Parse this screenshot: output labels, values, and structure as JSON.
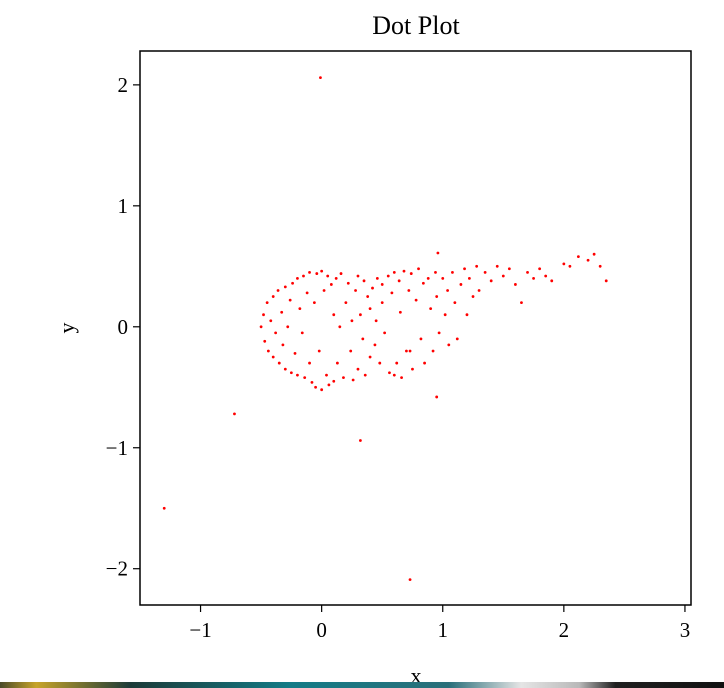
{
  "chart_data": {
    "type": "scatter",
    "title": "Dot Plot",
    "xlabel": "x",
    "ylabel": "y",
    "xlim": [
      -1.5,
      3.05
    ],
    "ylim": [
      -2.3,
      2.28
    ],
    "xticks": [
      -1,
      0,
      1,
      2,
      3
    ],
    "yticks": [
      -2,
      -1,
      0,
      1,
      2
    ],
    "xtick_labels": [
      "−1",
      "0",
      "1",
      "2",
      "3"
    ],
    "ytick_labels": [
      "−2",
      "−1",
      "0",
      "1",
      "2"
    ],
    "grid": false,
    "legend": "none",
    "color": "#ff0000",
    "series": [
      {
        "values": [
          [
            -0.5,
            0.0
          ],
          [
            -0.48,
            0.1
          ],
          [
            -0.47,
            -0.12
          ],
          [
            -0.45,
            0.2
          ],
          [
            -0.44,
            -0.2
          ],
          [
            -0.42,
            0.05
          ],
          [
            -0.4,
            0.25
          ],
          [
            -0.4,
            -0.25
          ],
          [
            -0.38,
            -0.05
          ],
          [
            -0.36,
            0.3
          ],
          [
            -0.35,
            -0.3
          ],
          [
            -0.33,
            0.12
          ],
          [
            -0.32,
            -0.15
          ],
          [
            -0.3,
            0.33
          ],
          [
            -0.3,
            -0.35
          ],
          [
            -0.28,
            0.0
          ],
          [
            -0.26,
            0.22
          ],
          [
            -0.25,
            -0.38
          ],
          [
            -0.24,
            0.36
          ],
          [
            -0.22,
            -0.22
          ],
          [
            -0.2,
            0.4
          ],
          [
            -0.2,
            -0.4
          ],
          [
            -0.18,
            0.15
          ],
          [
            -0.16,
            -0.05
          ],
          [
            -0.15,
            0.42
          ],
          [
            -0.14,
            -0.42
          ],
          [
            -0.12,
            0.28
          ],
          [
            -0.1,
            -0.3
          ],
          [
            -0.1,
            0.45
          ],
          [
            -0.08,
            -0.46
          ],
          [
            -0.06,
            0.2
          ],
          [
            -0.05,
            -0.5
          ],
          [
            -0.04,
            0.44
          ],
          [
            -0.02,
            -0.2
          ],
          [
            0.0,
            0.46
          ],
          [
            0.0,
            -0.52
          ],
          [
            0.02,
            0.3
          ],
          [
            0.04,
            -0.4
          ],
          [
            0.05,
            0.42
          ],
          [
            0.06,
            -0.48
          ],
          [
            0.08,
            0.35
          ],
          [
            0.1,
            -0.45
          ],
          [
            0.1,
            0.1
          ],
          [
            0.12,
            0.4
          ],
          [
            0.13,
            -0.3
          ],
          [
            0.15,
            0.0
          ],
          [
            0.16,
            0.44
          ],
          [
            0.18,
            -0.42
          ],
          [
            0.2,
            0.2
          ],
          [
            0.22,
            0.36
          ],
          [
            0.24,
            -0.2
          ],
          [
            0.25,
            0.05
          ],
          [
            0.26,
            -0.44
          ],
          [
            0.28,
            0.3
          ],
          [
            0.3,
            -0.35
          ],
          [
            0.3,
            0.42
          ],
          [
            0.32,
            0.1
          ],
          [
            0.34,
            -0.1
          ],
          [
            0.35,
            0.38
          ],
          [
            0.36,
            -0.4
          ],
          [
            0.38,
            0.25
          ],
          [
            0.4,
            -0.25
          ],
          [
            0.4,
            0.15
          ],
          [
            0.42,
            0.32
          ],
          [
            0.44,
            -0.15
          ],
          [
            0.45,
            0.05
          ],
          [
            0.46,
            0.4
          ],
          [
            0.48,
            -0.3
          ],
          [
            0.5,
            0.2
          ],
          [
            0.5,
            0.35
          ],
          [
            0.52,
            -0.05
          ],
          [
            0.55,
            0.42
          ],
          [
            0.56,
            -0.38
          ],
          [
            0.58,
            0.28
          ],
          [
            0.6,
            0.45
          ],
          [
            0.62,
            -0.3
          ],
          [
            0.64,
            0.38
          ],
          [
            0.65,
            0.12
          ],
          [
            0.66,
            -0.42
          ],
          [
            0.68,
            0.46
          ],
          [
            0.7,
            -0.2
          ],
          [
            0.72,
            0.3
          ],
          [
            0.74,
            0.44
          ],
          [
            0.75,
            -0.35
          ],
          [
            0.78,
            0.22
          ],
          [
            0.8,
            0.48
          ],
          [
            0.82,
            -0.1
          ],
          [
            0.84,
            0.36
          ],
          [
            0.85,
            -0.3
          ],
          [
            0.88,
            0.4
          ],
          [
            0.9,
            0.15
          ],
          [
            0.92,
            -0.2
          ],
          [
            0.94,
            0.45
          ],
          [
            0.95,
            0.25
          ],
          [
            0.97,
            -0.05
          ],
          [
            1.0,
            0.4
          ],
          [
            1.02,
            0.1
          ],
          [
            1.04,
            0.3
          ],
          [
            1.05,
            -0.15
          ],
          [
            1.08,
            0.45
          ],
          [
            1.1,
            0.2
          ],
          [
            1.12,
            -0.1
          ],
          [
            1.15,
            0.35
          ],
          [
            1.18,
            0.48
          ],
          [
            1.2,
            0.1
          ],
          [
            1.22,
            0.4
          ],
          [
            1.25,
            0.25
          ],
          [
            1.28,
            0.5
          ],
          [
            1.3,
            0.3
          ],
          [
            1.35,
            0.45
          ],
          [
            1.4,
            0.38
          ],
          [
            1.45,
            0.5
          ],
          [
            1.5,
            0.42
          ],
          [
            1.55,
            0.48
          ],
          [
            1.6,
            0.35
          ],
          [
            1.65,
            0.2
          ],
          [
            1.7,
            0.45
          ],
          [
            1.75,
            0.4
          ],
          [
            1.8,
            0.48
          ],
          [
            1.85,
            0.42
          ],
          [
            1.9,
            0.38
          ],
          [
            2.0,
            0.52
          ],
          [
            2.05,
            0.5
          ],
          [
            2.12,
            0.58
          ],
          [
            2.2,
            0.55
          ],
          [
            2.25,
            0.6
          ],
          [
            2.3,
            0.5
          ],
          [
            2.35,
            0.38
          ],
          [
            0.96,
            0.61
          ],
          [
            0.95,
            -0.58
          ],
          [
            0.73,
            -0.2
          ],
          [
            0.6,
            -0.4
          ],
          [
            -0.01,
            2.06
          ],
          [
            -0.72,
            -0.72
          ],
          [
            0.32,
            -0.94
          ],
          [
            -1.3,
            -1.5
          ],
          [
            0.73,
            -2.09
          ]
        ]
      }
    ]
  }
}
